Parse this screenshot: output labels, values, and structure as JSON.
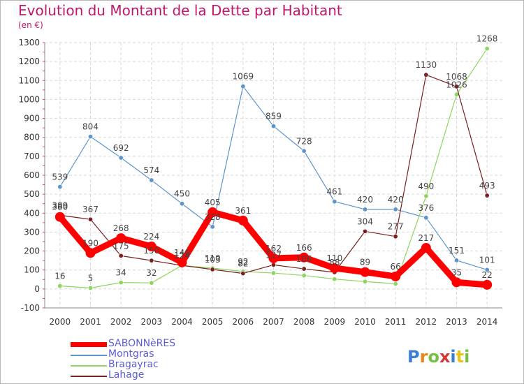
{
  "title": "Evolution du Montant de la Dette par Habitant",
  "unit_label": "(en €)",
  "logo_text": "Proxiti",
  "chart_data": {
    "type": "line",
    "title": "Evolution du Montant de la Dette par Habitant",
    "subtitle": "(en €)",
    "xlabel": "",
    "ylabel": "",
    "ylim": [
      -100,
      1300
    ],
    "yticks": [
      -100,
      0,
      100,
      200,
      300,
      400,
      500,
      600,
      700,
      800,
      900,
      1000,
      1100,
      1200,
      1300
    ],
    "categories": [
      "2000",
      "2001",
      "2002",
      "2003",
      "2004",
      "2005",
      "2006",
      "2007",
      "2008",
      "2009",
      "2010",
      "2011",
      "2012",
      "2013",
      "2014"
    ],
    "grid": true,
    "legend_position": "bottom-left",
    "series": [
      {
        "name": "SABONNèRES",
        "color": "#ff0000",
        "values": [
          380,
          190,
          268,
          224,
          140,
          405,
          361,
          162,
          166,
          110,
          89,
          66,
          217,
          35,
          22
        ],
        "labels_shown": [
          true,
          true,
          true,
          true,
          true,
          true,
          true,
          true,
          true,
          true,
          true,
          true,
          true,
          true,
          true
        ]
      },
      {
        "name": "Montgras",
        "color": "#5b95cc",
        "values": [
          539,
          804,
          692,
          574,
          450,
          328,
          1069,
          859,
          728,
          461,
          420,
          420,
          376,
          151,
          101
        ],
        "labels_shown": [
          true,
          true,
          true,
          true,
          true,
          true,
          true,
          true,
          true,
          true,
          true,
          true,
          true,
          true,
          true
        ]
      },
      {
        "name": "Bragayrac",
        "color": "#8fd460",
        "values": [
          16,
          5,
          34,
          32,
          124,
          110,
          92,
          84,
          71,
          52,
          39,
          27,
          490,
          1026,
          1268
        ],
        "labels_shown": [
          true,
          true,
          true,
          true,
          true,
          true,
          true,
          false,
          false,
          false,
          false,
          false,
          true,
          true,
          true
        ]
      },
      {
        "name": "Lahage",
        "color": "#7a2020",
        "values": [
          389,
          367,
          175,
          150,
          124,
          103,
          82,
          127,
          106,
          88,
          304,
          277,
          1130,
          1068,
          493
        ],
        "labels_shown": [
          true,
          true,
          true,
          true,
          false,
          true,
          true,
          true,
          true,
          true,
          true,
          true,
          true,
          true,
          true
        ]
      }
    ]
  }
}
